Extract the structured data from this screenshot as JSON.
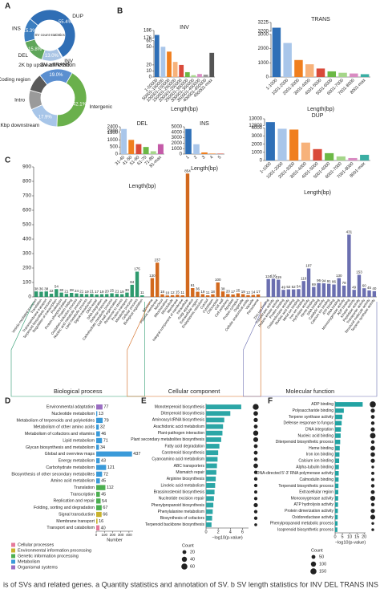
{
  "panel_labels": [
    "A",
    "B",
    "C",
    "D",
    "E",
    "F"
  ],
  "caption": "is of SVs and related genes. a Quantity statistics and annotation of SV. b SV length statistics for INV DEL TRANS INS",
  "chart_data": [
    {
      "type": "donut",
      "title": "SV count statistics",
      "categories": [
        "DUP",
        "INV",
        "TRANS",
        "DEL",
        "INS"
      ],
      "values": [
        55.4,
        0.5,
        13.0,
        15.8,
        15.3
      ],
      "value_labels": [
        "55.4%",
        null,
        "13.0%",
        "15.8%",
        "15.3%"
      ],
      "colors": [
        "#2f6eb5",
        "#6d9bd3",
        "#a9c4e4",
        "#5fa65a",
        "#3c7ec0"
      ]
    },
    {
      "type": "donut",
      "title": "SV annotation",
      "categories": [
        "Intergenic",
        "2Kbp downstream",
        "Intro",
        "Coding region",
        "2K bp upstream"
      ],
      "values": [
        42.1,
        17.9,
        11,
        10,
        19.0
      ],
      "value_labels": [
        "42.1%",
        "17.9%",
        null,
        null,
        "19.0%"
      ],
      "colors": [
        "#6ab04c",
        "#a7c5e8",
        "#9a9a9a",
        "#5a5a5a",
        "#5b8fd0"
      ]
    },
    {
      "type": "bar",
      "title": "INV",
      "xlabel": "Length(bp)",
      "categories": [
        "1-50000",
        "50001-100000",
        "100001-150000",
        "150001-200000",
        "200001-250000",
        "250001-300000",
        "300001-350000",
        "350001-400000",
        "400001-450000",
        "450001-max"
      ],
      "values": [
        180,
        50,
        42,
        25,
        20,
        8,
        3,
        5,
        4,
        40
      ],
      "colors": [
        "#2e6fb7",
        "#a9c6ea",
        "#f07f1e",
        "#f7b27a",
        "#d94a3a",
        "#6cb846",
        "#a5d68a",
        "#d98bc2",
        "#999999",
        "#555555"
      ],
      "ylim": [
        0,
        186
      ],
      "ybreak": [
        60,
        176
      ],
      "yticks": [
        0,
        10,
        20,
        50,
        60,
        176,
        186
      ]
    },
    {
      "type": "bar",
      "title": "TRANS",
      "xlabel": "Length(bp)",
      "categories": [
        "1-1000",
        "1001-2000",
        "2001-3000",
        "3001-4000",
        "4001-5000",
        "5001-6000",
        "6001-7000",
        "7001-8000",
        "8001-max"
      ],
      "values": [
        3210,
        2400,
        1200,
        900,
        600,
        400,
        300,
        250,
        200
      ],
      "colors": [
        "#2e6fb7",
        "#a9c6ea",
        "#f07f1e",
        "#f7b27a",
        "#d94a3a",
        "#6cb846",
        "#a5d68a",
        "#d98bc2",
        "#3aaea3"
      ],
      "ylim": [
        0,
        3225
      ],
      "ybreak": [
        3000,
        3200
      ],
      "yticks": [
        0,
        1000,
        2000,
        3000,
        3200,
        3225
      ]
    },
    {
      "type": "bar",
      "title": "DEL",
      "xlabel": "Length(bp)",
      "categories": [
        "31-40",
        "41-50",
        "51-60",
        "61-70",
        "71-80",
        "81-max"
      ],
      "values": [
        2350,
        1000,
        700,
        500,
        200,
        700
      ],
      "colors": [
        "#a9c6ea",
        "#f07f1e",
        "#d94a3a",
        "#6cb846",
        "#a5d68a",
        "#c45aa8"
      ],
      "ylim": [
        0,
        2400
      ],
      "ybreak": [
        1500,
        2300
      ],
      "yticks": [
        0,
        500,
        1000,
        1500,
        2300,
        2400
      ]
    },
    {
      "type": "bar",
      "title": "INS",
      "xlabel": "Length(bp)",
      "categories": [
        "1",
        "2",
        "3",
        "4",
        "5"
      ],
      "values": [
        4600,
        1800,
        300,
        150,
        80
      ],
      "colors": [
        "#2e6fb7",
        "#a9c6ea",
        "#f07f1e",
        "#f7b27a",
        "#d94a3a"
      ],
      "ylim": [
        0,
        5000
      ],
      "yticks": [
        0,
        1000,
        2000,
        3000,
        4000,
        5000
      ]
    },
    {
      "type": "bar",
      "title": "DUP",
      "xlabel": "Length(bp)",
      "categories": [
        "1-1000",
        "1001-2000",
        "2001-3000",
        "3001-4000",
        "4001-5000",
        "5001-6000",
        "6001-7000",
        "7001-8000",
        "8001-max"
      ],
      "values": [
        12900,
        3900,
        3800,
        2200,
        1400,
        900,
        500,
        300,
        700
      ],
      "colors": [
        "#2e6fb7",
        "#a9c6ea",
        "#f07f1e",
        "#f7b27a",
        "#d94a3a",
        "#6cb846",
        "#a5d68a",
        "#d98bc2",
        "#3aaea3"
      ],
      "ylim": [
        0,
        13000
      ],
      "ybreak": [
        4000,
        12800
      ],
      "yticks": [
        0,
        1000,
        2000,
        3000,
        4000,
        12800,
        13000
      ]
    },
    {
      "type": "groupbar",
      "ylim": [
        0,
        900
      ],
      "yticks": [
        0,
        100,
        200,
        300,
        400,
        500,
        600,
        700,
        800,
        900
      ],
      "groups": [
        {
          "name": "Biological process",
          "color": "#2e9a6e",
          "categories": [
            "Vesicle-mediated transport",
            "Translation",
            "Transmembrane transport",
            "Terpenoid biosynthetic process",
            "Regulation of transcription",
            "Proteolysis",
            "Protein phosphorylation",
            "Protein folding",
            "Oxidation-reduction process",
            "Nucleic acid metabolic process",
            "Lipid metabolic process",
            "Signal transduction",
            "DNA repair",
            "DNA integration",
            "Defense response",
            "Carbohydrate metabolic process",
            "Cell wall organization",
            "Response to stress",
            "Protein transport",
            "Metabolic process",
            "Cellular process",
            "Biological regulation"
          ],
          "values": [
            38,
            36,
            38,
            22,
            54,
            30,
            21,
            28,
            24,
            21,
            19,
            21,
            17,
            19,
            20,
            25,
            21,
            19,
            30,
            84,
            175,
            11
          ]
        },
        {
          "name": "Cellular component",
          "color": "#d2691e",
          "categories": [
            "Ribosome",
            "Plasma membrane",
            "Nucleus",
            "Mitochondrion",
            "Microtubule",
            "Membrane",
            "Integral component of membrane",
            "Intracellular",
            "Golgi apparatus",
            "Extracellular region",
            "Endoplasmic reticulum",
            "Cytosol",
            "Cytoplasm",
            "Chloroplast",
            "Cell wall",
            "Cell periphery",
            "Apoplast",
            "Protein complex",
            "Organelle",
            "Cellular anatomical entity",
            "Vacuole",
            "Peroxisome"
          ],
          "values": [
            130,
            237,
            18,
            10,
            12,
            15,
            11,
            854,
            61,
            36,
            19,
            11,
            18,
            100,
            38,
            20,
            17,
            25,
            19,
            12,
            14,
            17
          ]
        },
        {
          "name": "Molecular function",
          "color": "#6b6fb0",
          "categories": [
            "Zinc ion binding",
            "Transferase activity",
            "Protein kinase activity",
            "Protein binding",
            "Oxidoreductase activity",
            "Nucleic acid binding",
            "Metal ion binding",
            "Iron ion binding",
            "Hydrolase activity",
            "Heme binding",
            "DNA binding",
            "Catalytic activity",
            "Calcium ion binding",
            "ATP binding",
            "RNA binding",
            "Monooxygenase activity",
            "ADP binding",
            "Kinase activity",
            "Peptidase activity",
            "Transporter activity",
            "Structural molecule activity",
            "Terpene synthase activity"
          ],
          "values": [
            124,
            126,
            119,
            49,
            52,
            52,
            54,
            110,
            197,
            69,
            96,
            94,
            91,
            86,
            130,
            78,
            431,
            49,
            153,
            60,
            45,
            40
          ]
        }
      ]
    },
    {
      "type": "hbar",
      "xlabel": "Number",
      "xlim": [
        0,
        450
      ],
      "xticks": [
        0,
        100,
        200,
        300,
        400
      ],
      "categories": [
        "Environmental adaptation",
        "Nucleotide metabolism",
        "Metabolism of terpenoids and polyketides",
        "Metabolism of other amino acids",
        "Metabolism of cofactors and vitamins",
        "Lipid metabolism",
        "Glycan biosynthesis and metabolism",
        "Global and overview maps",
        "Energy metabolism",
        "Carbohydrate metabolism",
        "Biosynthesis of other secondary metabolites",
        "Amino acid metabolism",
        "Translation",
        "Transcription",
        "Replication and repair",
        "Folding, sorting and degradation",
        "Signal transduction",
        "Membrane transport",
        "Transport and catabolism"
      ],
      "values": [
        77,
        13,
        79,
        32,
        46,
        71,
        34,
        437,
        43,
        121,
        72,
        45,
        112,
        45,
        54,
        67,
        66,
        16,
        40
      ],
      "colors": [
        "#9b6fc3",
        "#3a9ad9",
        "#3a9ad9",
        "#3a9ad9",
        "#3a9ad9",
        "#3a9ad9",
        "#3a9ad9",
        "#3a9ad9",
        "#3a9ad9",
        "#3a9ad9",
        "#3a9ad9",
        "#3a9ad9",
        "#4caf50",
        "#4caf50",
        "#4caf50",
        "#4caf50",
        "#c9b22b",
        "#c9b22b",
        "#e57a9a"
      ],
      "legend": {
        "names": [
          "Cellular processes",
          "Environmental information processing",
          "Genetic information processing",
          "Metabolism",
          "Organismal systems"
        ],
        "colors": [
          "#e57a9a",
          "#c9b22b",
          "#4caf50",
          "#3a9ad9",
          "#9b6fc3"
        ]
      }
    },
    {
      "type": "dotbar",
      "xlabel": "−log10(p-value)",
      "xlim": [
        0,
        7
      ],
      "xticks": [
        0,
        2,
        4,
        6
      ],
      "color": "#2ba6a6",
      "size_label": "Count",
      "size_legend": [
        20,
        40,
        60
      ],
      "categories": [
        "Monoterpenoid biosynthesis",
        "Diterpenoid biosynthesis",
        "Aminoacyl-tRNA biosynthesis",
        "Arachidonic acid metabolism",
        "Plant-pathogen interaction",
        "Plant secondary metabolites biosynthesis",
        "Fatty acid degradation",
        "Carotenoid biosynthesis",
        "Cyanoamino acid metabolism",
        "ABC transporters",
        "Mismatch repair",
        "Arginine biosynthesis",
        "Linoleic acid metabolism",
        "Brassinosteroid biosynthesis",
        "Nucleotide excision repair",
        "Phenylpropanoid biosynthesis",
        "Phenylalanine metabolism",
        "Biosynthesis of cofactors",
        "Terpenoid backbone biosynthesis"
      ],
      "values": [
        5.8,
        4.0,
        3.0,
        2.8,
        2.7,
        2.5,
        2.2,
        2.0,
        1.9,
        1.8,
        1.7,
        1.6,
        1.5,
        1.4,
        1.3,
        1.2,
        1.1,
        1.0,
        0.9
      ],
      "sizes": [
        55,
        30,
        25,
        20,
        40,
        35,
        20,
        20,
        18,
        30,
        15,
        15,
        15,
        12,
        15,
        25,
        15,
        15,
        10
      ]
    },
    {
      "type": "dotbar",
      "xlabel": "−log10(p-value)",
      "xlim": [
        0,
        21
      ],
      "xticks": [
        0,
        5,
        10,
        15,
        20
      ],
      "color": "#22a3a3",
      "size_label": "Count",
      "size_legend": [
        50,
        100,
        150
      ],
      "categories": [
        "ADP binding",
        "Polysaccharide binding",
        "Terpene synthase activity",
        "Defense response to fungus",
        "DNA integration",
        "Nucleic acid binding",
        "Diterpenoid biosynthetic process",
        "Heme binding",
        "Iron ion binding",
        "Calcium ion binding",
        "Alpha-tubulin binding",
        "DNA-directed 5'-3' RNA polymerase activity",
        "Calmodulin binding",
        "Terpenoid biosynthetic process",
        "Extracellular region",
        "Monooxygenase activity",
        "ATP hydrolysis activity",
        "Protein dimerization activity",
        "Oxidoreductase activity",
        "Phenylpropanoid metabolic process",
        "Isoprenoid biosynthetic process"
      ],
      "values": [
        19,
        6,
        5,
        4.5,
        4,
        3.8,
        3.5,
        3.2,
        3,
        2.8,
        2.6,
        2.5,
        2.4,
        2.3,
        2.2,
        2.1,
        2,
        1.9,
        1.8,
        1.7,
        1.6
      ],
      "sizes": [
        150,
        60,
        50,
        40,
        60,
        120,
        40,
        80,
        70,
        60,
        20,
        30,
        30,
        40,
        50,
        90,
        40,
        60,
        90,
        20,
        20
      ]
    }
  ]
}
